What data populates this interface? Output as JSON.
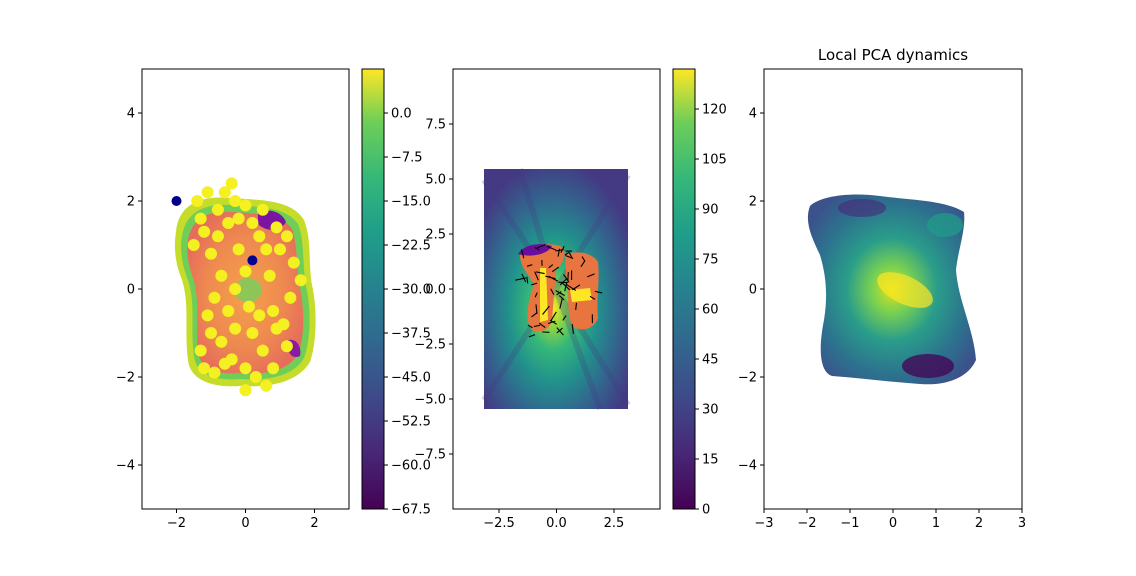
{
  "chart_data": [
    {
      "type": "scatter",
      "title": "",
      "xlabel": "",
      "ylabel": "",
      "xlim": [
        -3,
        3
      ],
      "ylim": [
        -5,
        5
      ],
      "x_ticks": [
        -2,
        0,
        2
      ],
      "y_ticks": [
        -4,
        -2,
        0,
        2,
        4
      ],
      "x_tick_labels": [
        "−2",
        "0",
        "2"
      ],
      "y_tick_labels": [
        "−4",
        "−2",
        "0",
        "2",
        "4"
      ],
      "background": "filled contour of the occupied region, value range −67.5 to 0",
      "colorbar": {
        "colormap": "viridis",
        "range": [
          -67.5,
          7.5
        ],
        "ticks": [
          0.0,
          -7.5,
          -15.0,
          -22.5,
          -30.0,
          -37.5,
          -45.0,
          -52.5,
          -60.0,
          -67.5
        ],
        "tick_labels": [
          "0.0",
          "−7.5",
          "−15.0",
          "−22.5",
          "−30.0",
          "−37.5",
          "−45.0",
          "−52.5",
          "−60.0",
          "−67.5"
        ]
      },
      "highlighted_points": [
        {
          "x": -2.0,
          "y": 2.0,
          "color": "#00008b"
        },
        {
          "x": 0.2,
          "y": 0.65,
          "color": "#00008b"
        }
      ],
      "trajectory_points": [
        [
          -0.8,
          1.8
        ],
        [
          -0.6,
          2.2
        ],
        [
          -0.4,
          2.4
        ],
        [
          -0.3,
          2.0
        ],
        [
          -0.5,
          1.5
        ],
        [
          -0.8,
          1.2
        ],
        [
          -1.0,
          0.8
        ],
        [
          -1.2,
          1.3
        ],
        [
          -1.4,
          2.0
        ],
        [
          -1.1,
          2.2
        ],
        [
          -0.2,
          1.6
        ],
        [
          0.0,
          1.9
        ],
        [
          0.2,
          1.5
        ],
        [
          0.5,
          1.8
        ],
        [
          0.9,
          1.4
        ],
        [
          1.2,
          1.2
        ],
        [
          1.4,
          0.6
        ],
        [
          1.6,
          0.2
        ],
        [
          -0.7,
          0.3
        ],
        [
          -0.9,
          -0.2
        ],
        [
          -1.1,
          -0.6
        ],
        [
          -1.0,
          -1.0
        ],
        [
          -0.7,
          -1.2
        ],
        [
          -0.4,
          -1.6
        ],
        [
          0.0,
          -1.8
        ],
        [
          0.3,
          -2.0
        ],
        [
          0.6,
          -2.2
        ],
        [
          0.8,
          -1.8
        ],
        [
          0.5,
          -1.4
        ],
        [
          0.2,
          -1.0
        ],
        [
          0.4,
          -0.6
        ],
        [
          0.8,
          -0.5
        ],
        [
          1.1,
          -0.8
        ],
        [
          1.2,
          -1.3
        ],
        [
          0.9,
          -0.9
        ],
        [
          -0.3,
          0.0
        ],
        [
          -0.5,
          -0.5
        ],
        [
          -0.2,
          0.9
        ],
        [
          0.0,
          0.4
        ],
        [
          0.6,
          0.9
        ],
        [
          1.0,
          0.9
        ],
        [
          -1.3,
          -1.4
        ],
        [
          -1.2,
          -1.8
        ],
        [
          -0.9,
          -1.9
        ],
        [
          -1.5,
          1.0
        ],
        [
          -1.3,
          1.6
        ],
        [
          -0.3,
          -0.9
        ],
        [
          0.1,
          -0.4
        ],
        [
          0.7,
          0.3
        ],
        [
          0.4,
          1.2
        ],
        [
          1.3,
          -0.2
        ],
        [
          -0.6,
          -1.7
        ],
        [
          0.0,
          -2.3
        ]
      ]
    },
    {
      "type": "heatmap",
      "title": "",
      "xlabel": "",
      "ylabel": "",
      "xlim": [
        -4.5,
        4.5
      ],
      "ylim": [
        -10,
        10
      ],
      "x_ticks": [
        -2.5,
        0.0,
        2.5
      ],
      "y_ticks": [
        -7.5,
        -5.0,
        -2.5,
        0.0,
        2.5,
        5.0,
        7.5
      ],
      "x_tick_labels": [
        "−2.5",
        "0.0",
        "2.5"
      ],
      "y_tick_labels": [
        "−7.5",
        "−5.0",
        "−2.5",
        "0.0",
        "2.5",
        "5.0",
        "7.5"
      ],
      "field_extent": {
        "x": [
          -3,
          3
        ],
        "y": [
          -5,
          5
        ]
      },
      "overlay": "trajectory with black quiver arrows",
      "colorbar": {
        "colormap": "viridis",
        "range": [
          0,
          132
        ],
        "ticks": [
          0,
          15,
          30,
          45,
          60,
          75,
          90,
          105,
          120
        ],
        "tick_labels": [
          "0",
          "15",
          "30",
          "45",
          "60",
          "75",
          "90",
          "105",
          "120"
        ]
      }
    },
    {
      "type": "heatmap",
      "title": "Local PCA dynamics",
      "xlabel": "",
      "ylabel": "",
      "xlim": [
        -3,
        3
      ],
      "ylim": [
        -5,
        5
      ],
      "x_ticks": [
        -3,
        -2,
        -1,
        0,
        1,
        2,
        3
      ],
      "y_ticks": [
        -4,
        -2,
        0,
        2,
        4
      ],
      "x_tick_labels": [
        "−3",
        "−2",
        "−1",
        "0",
        "1",
        "2",
        "3"
      ],
      "y_tick_labels": [
        "−4",
        "−2",
        "0",
        "2",
        "4"
      ],
      "colormap": "viridis"
    }
  ]
}
